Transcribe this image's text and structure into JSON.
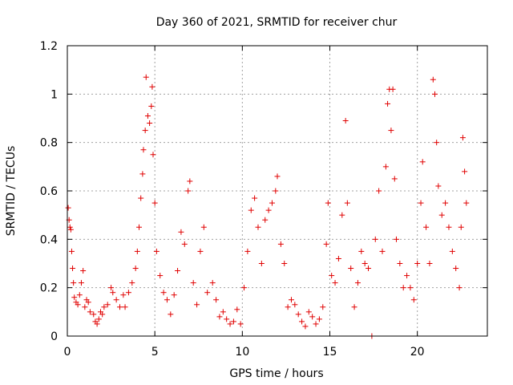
{
  "chart_data": {
    "type": "scatter",
    "title": "Day 360 of 2021, SRMTID for receiver chur",
    "xlabel": "GPS time / hours",
    "ylabel": "SRMTID / TECUs",
    "xlim": [
      0,
      24
    ],
    "ylim": [
      0,
      1.2
    ],
    "xticks": [
      0,
      5,
      10,
      15,
      20
    ],
    "xtick_labels": [
      "0",
      "5",
      "10",
      "15",
      "20"
    ],
    "yticks": [
      0,
      0.2,
      0.4,
      0.6,
      0.8,
      1.0,
      1.2
    ],
    "ytick_labels": [
      "0",
      "0.2",
      "0.4",
      "0.6",
      "0.8",
      "1",
      "1.2"
    ],
    "grid": true,
    "marker": "+",
    "color": "#e00000",
    "series": [
      {
        "name": "SRMTID",
        "points": [
          [
            0.05,
            0.53
          ],
          [
            0.1,
            0.48
          ],
          [
            0.15,
            0.45
          ],
          [
            0.2,
            0.44
          ],
          [
            0.25,
            0.35
          ],
          [
            0.3,
            0.28
          ],
          [
            0.35,
            0.22
          ],
          [
            0.4,
            0.16
          ],
          [
            0.5,
            0.14
          ],
          [
            0.6,
            0.13
          ],
          [
            0.7,
            0.17
          ],
          [
            0.8,
            0.22
          ],
          [
            0.9,
            0.27
          ],
          [
            1.0,
            0.12
          ],
          [
            1.1,
            0.15
          ],
          [
            1.2,
            0.14
          ],
          [
            1.3,
            0.1
          ],
          [
            1.5,
            0.09
          ],
          [
            1.6,
            0.06
          ],
          [
            1.7,
            0.05
          ],
          [
            1.8,
            0.07
          ],
          [
            1.9,
            0.1
          ],
          [
            2.0,
            0.09
          ],
          [
            2.1,
            0.12
          ],
          [
            2.3,
            0.13
          ],
          [
            2.5,
            0.2
          ],
          [
            2.6,
            0.18
          ],
          [
            2.8,
            0.15
          ],
          [
            3.0,
            0.12
          ],
          [
            3.2,
            0.17
          ],
          [
            3.3,
            0.12
          ],
          [
            3.5,
            0.18
          ],
          [
            3.7,
            0.22
          ],
          [
            3.9,
            0.28
          ],
          [
            4.0,
            0.35
          ],
          [
            4.1,
            0.45
          ],
          [
            4.2,
            0.57
          ],
          [
            4.3,
            0.67
          ],
          [
            4.35,
            0.77
          ],
          [
            4.45,
            0.85
          ],
          [
            4.5,
            1.07
          ],
          [
            4.6,
            0.91
          ],
          [
            4.7,
            0.88
          ],
          [
            4.8,
            0.95
          ],
          [
            4.85,
            1.03
          ],
          [
            4.9,
            0.75
          ],
          [
            5.0,
            0.55
          ],
          [
            5.1,
            0.35
          ],
          [
            5.3,
            0.25
          ],
          [
            5.5,
            0.18
          ],
          [
            5.7,
            0.15
          ],
          [
            5.9,
            0.09
          ],
          [
            6.1,
            0.17
          ],
          [
            6.3,
            0.27
          ],
          [
            6.5,
            0.43
          ],
          [
            6.7,
            0.38
          ],
          [
            6.9,
            0.6
          ],
          [
            7.0,
            0.64
          ],
          [
            7.2,
            0.22
          ],
          [
            7.4,
            0.13
          ],
          [
            7.6,
            0.35
          ],
          [
            7.8,
            0.45
          ],
          [
            8.0,
            0.18
          ],
          [
            8.3,
            0.22
          ],
          [
            8.5,
            0.15
          ],
          [
            8.7,
            0.08
          ],
          [
            8.9,
            0.1
          ],
          [
            9.1,
            0.07
          ],
          [
            9.3,
            0.05
          ],
          [
            9.5,
            0.06
          ],
          [
            9.7,
            0.11
          ],
          [
            9.9,
            0.05
          ],
          [
            10.1,
            0.2
          ],
          [
            10.3,
            0.35
          ],
          [
            10.5,
            0.52
          ],
          [
            10.7,
            0.57
          ],
          [
            10.9,
            0.45
          ],
          [
            11.1,
            0.3
          ],
          [
            11.3,
            0.48
          ],
          [
            11.5,
            0.52
          ],
          [
            11.7,
            0.55
          ],
          [
            11.9,
            0.6
          ],
          [
            12.0,
            0.66
          ],
          [
            12.2,
            0.38
          ],
          [
            12.4,
            0.3
          ],
          [
            12.6,
            0.12
          ],
          [
            12.8,
            0.15
          ],
          [
            13.0,
            0.13
          ],
          [
            13.2,
            0.09
          ],
          [
            13.4,
            0.06
          ],
          [
            13.6,
            0.04
          ],
          [
            13.8,
            0.1
          ],
          [
            14.0,
            0.08
          ],
          [
            14.2,
            0.05
          ],
          [
            14.4,
            0.07
          ],
          [
            14.6,
            0.12
          ],
          [
            14.8,
            0.38
          ],
          [
            14.9,
            0.55
          ],
          [
            15.1,
            0.25
          ],
          [
            15.3,
            0.22
          ],
          [
            15.5,
            0.32
          ],
          [
            15.7,
            0.5
          ],
          [
            15.9,
            0.89
          ],
          [
            16.0,
            0.55
          ],
          [
            16.2,
            0.28
          ],
          [
            16.4,
            0.12
          ],
          [
            16.6,
            0.22
          ],
          [
            16.8,
            0.35
          ],
          [
            17.0,
            0.3
          ],
          [
            17.2,
            0.28
          ],
          [
            17.4,
            0.0
          ],
          [
            17.6,
            0.4
          ],
          [
            17.8,
            0.6
          ],
          [
            18.0,
            0.35
          ],
          [
            18.2,
            0.7
          ],
          [
            18.3,
            0.96
          ],
          [
            18.4,
            1.02
          ],
          [
            18.5,
            0.85
          ],
          [
            18.6,
            1.02
          ],
          [
            18.7,
            0.65
          ],
          [
            18.8,
            0.4
          ],
          [
            19.0,
            0.3
          ],
          [
            19.2,
            0.2
          ],
          [
            19.4,
            0.25
          ],
          [
            19.6,
            0.2
          ],
          [
            19.8,
            0.15
          ],
          [
            20.0,
            0.3
          ],
          [
            20.2,
            0.55
          ],
          [
            20.3,
            0.72
          ],
          [
            20.5,
            0.45
          ],
          [
            20.7,
            0.3
          ],
          [
            20.9,
            1.06
          ],
          [
            21.0,
            1.0
          ],
          [
            21.1,
            0.8
          ],
          [
            21.2,
            0.62
          ],
          [
            21.4,
            0.5
          ],
          [
            21.6,
            0.55
          ],
          [
            21.8,
            0.45
          ],
          [
            22.0,
            0.35
          ],
          [
            22.2,
            0.28
          ],
          [
            22.4,
            0.2
          ],
          [
            22.5,
            0.45
          ],
          [
            22.6,
            0.82
          ],
          [
            22.7,
            0.68
          ],
          [
            22.8,
            0.55
          ]
        ]
      }
    ]
  }
}
